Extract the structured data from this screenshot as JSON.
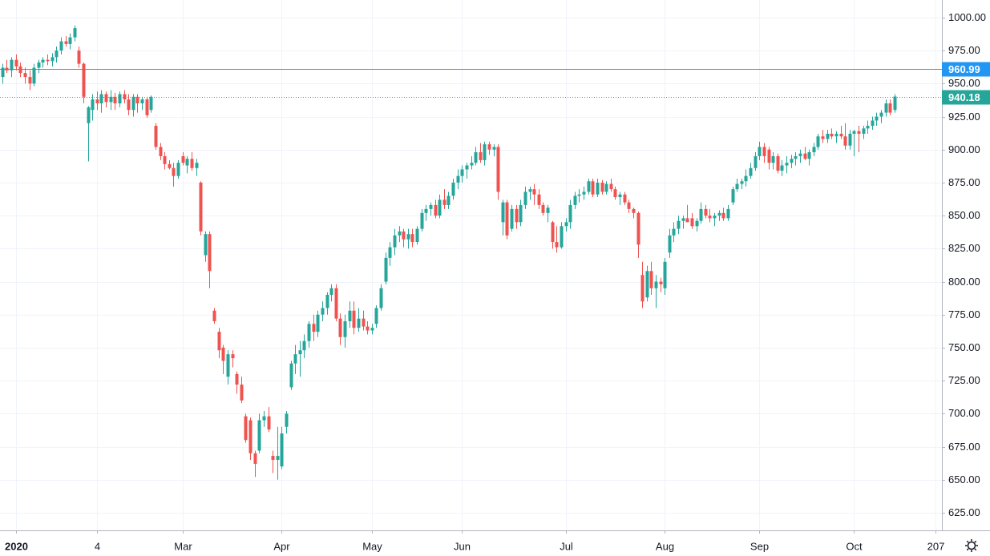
{
  "chart_data": {
    "type": "candlestick",
    "up_color": "#26a69a",
    "down_color": "#ef5350",
    "grid": true,
    "xlim": [
      -0.5,
      208.5
    ],
    "ylim": [
      611.6,
      1013.3
    ],
    "xticks": [
      {
        "value": 3,
        "label": "2020"
      },
      {
        "value": 21,
        "label": "4"
      },
      {
        "value": 40,
        "label": "Mar"
      },
      {
        "value": 62,
        "label": "Apr"
      },
      {
        "value": 82,
        "label": "May"
      },
      {
        "value": 102,
        "label": "Jun"
      },
      {
        "value": 125,
        "label": "Jul"
      },
      {
        "value": 147,
        "label": "Aug"
      },
      {
        "value": 168,
        "label": "Sep"
      },
      {
        "value": 189,
        "label": "Oct"
      },
      207
    ],
    "yticks": [
      {
        "value": 625,
        "label": "625.00"
      },
      {
        "value": 650,
        "label": "650.00"
      },
      {
        "value": 675,
        "label": "675.00"
      },
      {
        "value": 700,
        "label": "700.00"
      },
      {
        "value": 725,
        "label": "725.00"
      },
      {
        "value": 750,
        "label": "750.00"
      },
      {
        "value": 775,
        "label": "775.00"
      },
      {
        "value": 800,
        "label": "800.00"
      },
      {
        "value": 825,
        "label": "825.00"
      },
      {
        "value": 850,
        "label": "850.00"
      },
      {
        "value": 875,
        "label": "875.00"
      },
      {
        "value": 900,
        "label": "900.00"
      },
      {
        "value": 925,
        "label": "925.00"
      },
      {
        "value": 950,
        "label": "950.00"
      },
      {
        "value": 975,
        "label": "975.00"
      },
      {
        "value": 1000,
        "label": "1000.00"
      }
    ],
    "price_lines": [
      {
        "value": 960.99,
        "color": "#2196f3",
        "style": "solid"
      },
      {
        "value": 940.18,
        "color": "#26a69a",
        "style": "dotted"
      }
    ],
    "candles": [
      [
        955,
        965,
        950,
        962
      ],
      [
        962,
        968,
        958,
        960
      ],
      [
        960,
        970,
        955,
        968
      ],
      [
        968,
        972,
        960,
        963
      ],
      [
        963,
        966,
        955,
        958
      ],
      [
        958,
        962,
        950,
        955
      ],
      [
        955,
        960,
        945,
        950
      ],
      [
        950,
        965,
        948,
        962
      ],
      [
        962,
        968,
        958,
        966
      ],
      [
        966,
        970,
        962,
        968
      ],
      [
        968,
        972,
        964,
        967
      ],
      [
        967,
        973,
        963,
        970
      ],
      [
        970,
        978,
        966,
        975
      ],
      [
        975,
        985,
        972,
        982
      ],
      [
        982,
        986,
        978,
        980
      ],
      [
        980,
        988,
        976,
        985
      ],
      [
        985,
        994,
        982,
        992
      ],
      [
        975,
        978,
        962,
        965
      ],
      [
        965,
        966,
        935,
        940
      ],
      [
        920,
        933,
        891,
        932
      ],
      [
        930,
        942,
        922,
        938
      ],
      [
        938,
        944,
        930,
        935
      ],
      [
        935,
        945,
        928,
        942
      ],
      [
        942,
        944,
        932,
        936
      ],
      [
        936,
        945,
        930,
        940
      ],
      [
        940,
        943,
        930,
        935
      ],
      [
        935,
        944,
        932,
        942
      ],
      [
        942,
        945,
        935,
        938
      ],
      [
        938,
        942,
        926,
        930
      ],
      [
        930,
        942,
        925,
        940
      ],
      [
        940,
        942,
        928,
        935
      ],
      [
        935,
        940,
        930,
        938
      ],
      [
        938,
        940,
        924,
        926
      ],
      [
        930,
        941,
        928,
        940
      ],
      [
        918,
        920,
        900,
        902
      ],
      [
        902,
        905,
        892,
        895
      ],
      [
        895,
        898,
        885,
        889
      ],
      [
        889,
        892,
        885,
        886
      ],
      [
        886,
        890,
        872,
        880
      ],
      [
        880,
        892,
        878,
        890
      ],
      [
        895,
        898,
        888,
        890
      ],
      [
        888,
        895,
        882,
        893
      ],
      [
        893,
        898,
        884,
        886
      ],
      [
        886,
        893,
        880,
        890
      ],
      [
        875,
        876,
        835,
        838
      ],
      [
        820,
        838,
        815,
        836
      ],
      [
        836,
        838,
        795,
        808
      ],
      [
        778,
        780,
        768,
        770
      ],
      [
        762,
        765,
        742,
        748
      ],
      [
        750,
        752,
        730,
        740
      ],
      [
        728,
        748,
        722,
        745
      ],
      [
        745,
        748,
        735,
        742
      ],
      [
        730,
        732,
        715,
        722
      ],
      [
        722,
        728,
        708,
        710
      ],
      [
        698,
        700,
        678,
        680
      ],
      [
        695,
        697,
        665,
        670
      ],
      [
        670,
        672,
        652,
        662
      ],
      [
        672,
        700,
        670,
        695
      ],
      [
        695,
        702,
        690,
        698
      ],
      [
        698,
        705,
        686,
        688
      ],
      [
        668,
        672,
        655,
        665
      ],
      [
        665,
        690,
        650,
        668
      ],
      [
        660,
        690,
        658,
        685
      ],
      [
        690,
        702,
        685,
        700
      ],
      [
        720,
        740,
        718,
        738
      ],
      [
        738,
        752,
        730,
        745
      ],
      [
        745,
        755,
        728,
        748
      ],
      [
        748,
        760,
        742,
        755
      ],
      [
        755,
        770,
        750,
        768
      ],
      [
        768,
        775,
        755,
        762
      ],
      [
        762,
        778,
        758,
        775
      ],
      [
        775,
        785,
        770,
        780
      ],
      [
        780,
        792,
        775,
        790
      ],
      [
        790,
        798,
        785,
        795
      ],
      [
        795,
        798,
        770,
        772
      ],
      [
        772,
        776,
        752,
        758
      ],
      [
        758,
        775,
        750,
        770
      ],
      [
        770,
        785,
        765,
        778
      ],
      [
        778,
        785,
        760,
        765
      ],
      [
        765,
        780,
        762,
        772
      ],
      [
        772,
        778,
        763,
        766
      ],
      [
        766,
        770,
        760,
        763
      ],
      [
        763,
        768,
        760,
        765
      ],
      [
        768,
        782,
        765,
        780
      ],
      [
        780,
        798,
        778,
        795
      ],
      [
        800,
        822,
        798,
        818
      ],
      [
        818,
        830,
        812,
        826
      ],
      [
        826,
        840,
        820,
        835
      ],
      [
        835,
        842,
        830,
        838
      ],
      [
        838,
        840,
        826,
        832
      ],
      [
        832,
        840,
        825,
        836
      ],
      [
        836,
        840,
        826,
        830
      ],
      [
        830,
        842,
        828,
        840
      ],
      [
        840,
        855,
        838,
        852
      ],
      [
        852,
        858,
        846,
        855
      ],
      [
        855,
        860,
        850,
        858
      ],
      [
        858,
        862,
        848,
        850
      ],
      [
        850,
        866,
        848,
        862
      ],
      [
        862,
        870,
        855,
        858
      ],
      [
        858,
        868,
        855,
        865
      ],
      [
        865,
        878,
        862,
        875
      ],
      [
        875,
        885,
        870,
        880
      ],
      [
        880,
        888,
        875,
        885
      ],
      [
        885,
        890,
        878,
        888
      ],
      [
        888,
        895,
        885,
        890
      ],
      [
        890,
        902,
        888,
        898
      ],
      [
        898,
        905,
        890,
        892
      ],
      [
        892,
        906,
        888,
        904
      ],
      [
        904,
        906,
        896,
        900
      ],
      [
        900,
        904,
        895,
        902
      ],
      [
        902,
        904,
        862,
        868
      ],
      [
        845,
        862,
        835,
        860
      ],
      [
        860,
        862,
        832,
        835
      ],
      [
        840,
        858,
        838,
        855
      ],
      [
        855,
        858,
        840,
        845
      ],
      [
        845,
        862,
        842,
        858
      ],
      [
        858,
        872,
        855,
        868
      ],
      [
        868,
        872,
        862,
        870
      ],
      [
        870,
        874,
        858,
        866
      ],
      [
        866,
        870,
        855,
        858
      ],
      [
        858,
        860,
        850,
        852
      ],
      [
        852,
        858,
        845,
        856
      ],
      [
        845,
        846,
        825,
        830
      ],
      [
        830,
        842,
        822,
        826
      ],
      [
        826,
        845,
        825,
        842
      ],
      [
        842,
        848,
        838,
        845
      ],
      [
        845,
        862,
        840,
        858
      ],
      [
        858,
        868,
        855,
        865
      ],
      [
        865,
        870,
        860,
        866
      ],
      [
        866,
        872,
        862,
        868
      ],
      [
        868,
        878,
        866,
        876
      ],
      [
        876,
        878,
        864,
        866
      ],
      [
        866,
        878,
        864,
        875
      ],
      [
        875,
        877,
        866,
        868
      ],
      [
        868,
        876,
        866,
        874
      ],
      [
        874,
        878,
        868,
        870
      ],
      [
        870,
        872,
        862,
        864
      ],
      [
        864,
        868,
        858,
        866
      ],
      [
        866,
        868,
        858,
        860
      ],
      [
        860,
        862,
        852,
        855
      ],
      [
        855,
        856,
        848,
        852
      ],
      [
        852,
        853,
        818,
        828
      ],
      [
        805,
        815,
        780,
        785
      ],
      [
        788,
        812,
        785,
        808
      ],
      [
        808,
        815,
        790,
        795
      ],
      [
        795,
        805,
        780,
        800
      ],
      [
        800,
        803,
        792,
        798
      ],
      [
        795,
        818,
        790,
        815
      ],
      [
        822,
        840,
        818,
        835
      ],
      [
        835,
        845,
        830,
        840
      ],
      [
        840,
        850,
        836,
        846
      ],
      [
        846,
        850,
        840,
        848
      ],
      [
        848,
        858,
        845,
        845
      ],
      [
        848,
        852,
        840,
        842
      ],
      [
        842,
        848,
        838,
        846
      ],
      [
        846,
        860,
        844,
        855
      ],
      [
        855,
        858,
        848,
        850
      ],
      [
        850,
        855,
        845,
        848
      ],
      [
        848,
        852,
        842,
        850
      ],
      [
        850,
        854,
        846,
        852
      ],
      [
        852,
        856,
        846,
        848
      ],
      [
        848,
        858,
        846,
        855
      ],
      [
        860,
        872,
        858,
        870
      ],
      [
        870,
        878,
        868,
        874
      ],
      [
        874,
        878,
        870,
        876
      ],
      [
        876,
        885,
        872,
        880
      ],
      [
        880,
        890,
        878,
        886
      ],
      [
        886,
        898,
        884,
        895
      ],
      [
        895,
        906,
        892,
        902
      ],
      [
        902,
        905,
        890,
        895
      ],
      [
        900,
        902,
        885,
        890
      ],
      [
        890,
        898,
        885,
        895
      ],
      [
        895,
        897,
        882,
        884
      ],
      [
        884,
        892,
        880,
        888
      ],
      [
        888,
        895,
        882,
        890
      ],
      [
        890,
        896,
        886,
        893
      ],
      [
        893,
        898,
        888,
        895
      ],
      [
        895,
        900,
        890,
        897
      ],
      [
        897,
        902,
        892,
        893
      ],
      [
        893,
        900,
        888,
        898
      ],
      [
        898,
        905,
        895,
        902
      ],
      [
        902,
        912,
        900,
        910
      ],
      [
        910,
        915,
        905,
        908
      ],
      [
        908,
        915,
        905,
        912
      ],
      [
        912,
        916,
        908,
        910
      ],
      [
        910,
        914,
        905,
        912
      ],
      [
        912,
        918,
        908,
        910
      ],
      [
        910,
        920,
        900,
        903
      ],
      [
        903,
        915,
        900,
        912
      ],
      [
        912,
        915,
        895,
        914
      ],
      [
        914,
        918,
        898,
        912
      ],
      [
        912,
        918,
        908,
        916
      ],
      [
        916,
        922,
        912,
        918
      ],
      [
        918,
        925,
        915,
        922
      ],
      [
        922,
        928,
        918,
        925
      ],
      [
        925,
        930,
        920,
        928
      ],
      [
        928,
        938,
        925,
        935
      ],
      [
        935,
        938,
        926,
        928
      ],
      [
        930,
        942,
        928,
        940.18
      ]
    ]
  }
}
